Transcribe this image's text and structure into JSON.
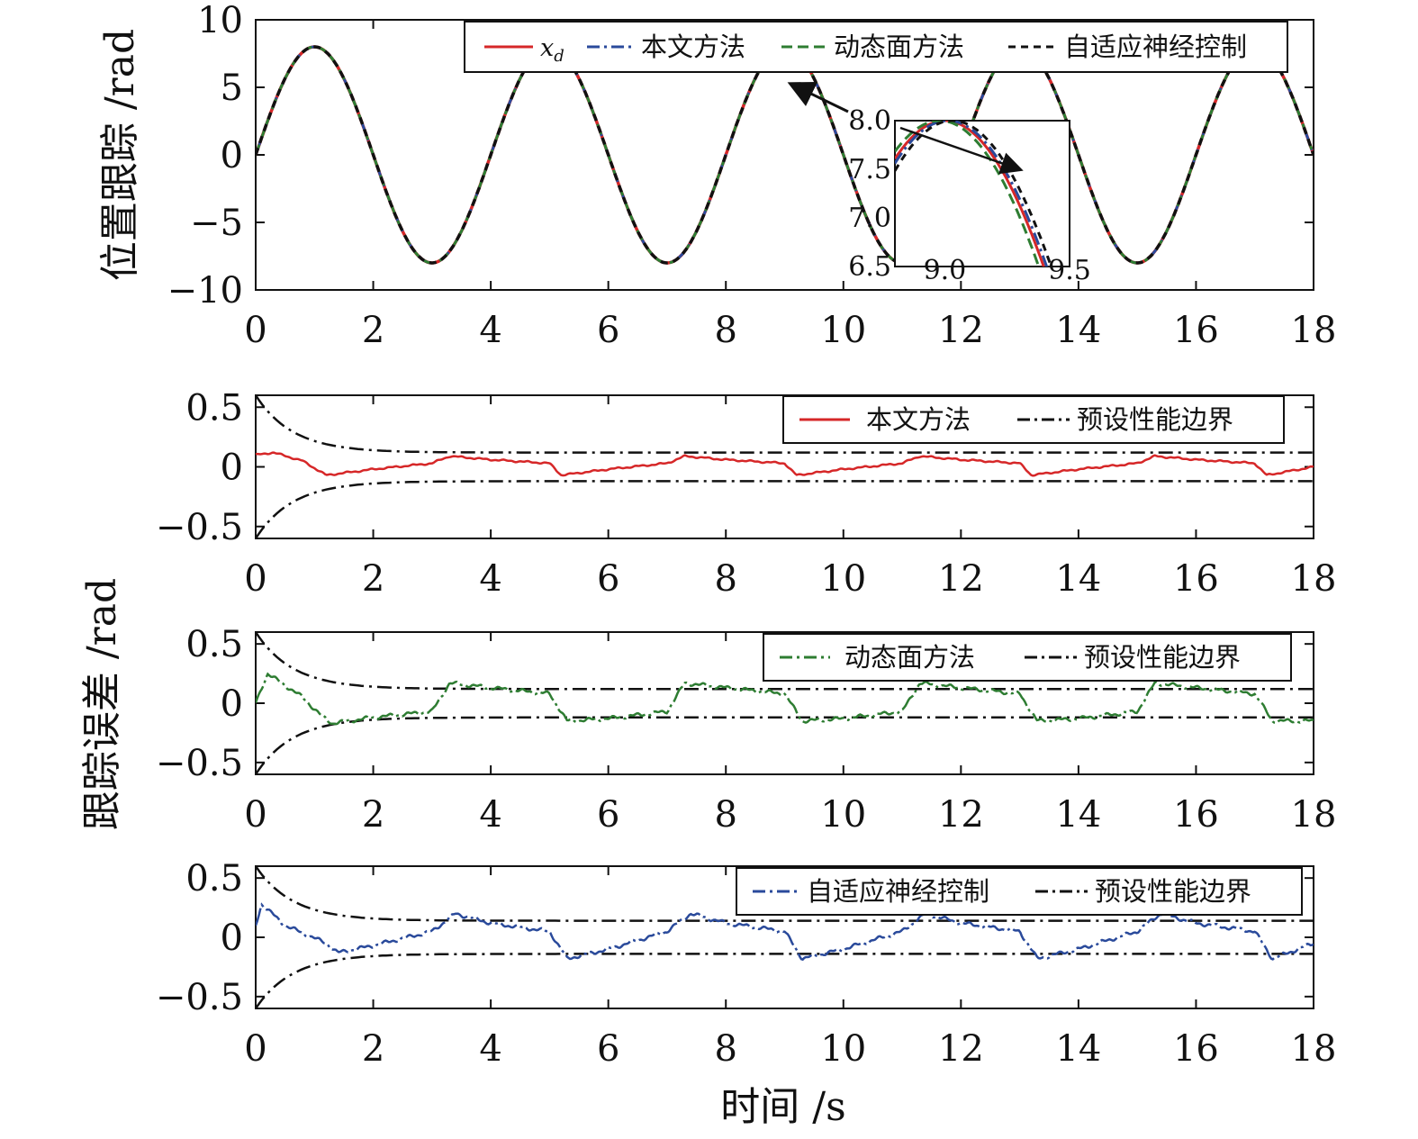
{
  "figure": {
    "xlabel": "时间 /s",
    "ylabel_top": "位置跟踪 /rad",
    "ylabel_error": "跟踪误差 /rad"
  },
  "colors": {
    "xd": "#d62728",
    "proposed": "#2a4a9b",
    "dsc": "#2e7d32",
    "anc": "#111111",
    "bound": "#111111"
  },
  "chart_data": [
    {
      "type": "line",
      "panel": "position",
      "x_range": [
        0,
        18
      ],
      "ylim": [
        -10,
        10
      ],
      "xticks": [
        "0",
        "2",
        "4",
        "6",
        "8",
        "10",
        "12",
        "14",
        "16",
        "18"
      ],
      "yticks": [
        "10",
        "5",
        "0",
        "−5",
        "−10"
      ],
      "series": [
        {
          "name": "x",
          "subscript": "d",
          "amplitude": 8,
          "period": 4,
          "style": "solid",
          "color": "#d62728"
        },
        {
          "name": "本文方法",
          "amplitude": 8,
          "period": 4,
          "style": "dash-dot",
          "color": "#2a4a9b"
        },
        {
          "name": "动态面方法",
          "amplitude": 8,
          "period": 4,
          "style": "dash",
          "color": "#2e7d32"
        },
        {
          "name": "自适应神经控制",
          "amplitude": 8,
          "period": 4,
          "style": "dash",
          "color": "#111111"
        }
      ],
      "inset": {
        "x_range": [
          8.8,
          9.5
        ],
        "ylim": [
          6.5,
          8.0
        ],
        "xticks": [
          "9.0",
          "9.5"
        ],
        "yticks": [
          "8.0",
          "7.5",
          "7.0",
          "6.5"
        ]
      }
    },
    {
      "type": "line",
      "panel": "error-proposed",
      "x_range": [
        0,
        18
      ],
      "ylim": [
        -0.6,
        0.6
      ],
      "xticks": [
        "0",
        "2",
        "4",
        "6",
        "8",
        "10",
        "12",
        "14",
        "16",
        "18"
      ],
      "yticks": [
        "0.5",
        "0",
        "−0.5"
      ],
      "bound": {
        "initial": 0.6,
        "final": 0.12,
        "decay_rate": 1.6,
        "name": "预设性能边界"
      },
      "series": [
        {
          "name": "本文方法",
          "color": "#d62728",
          "x": [
            0,
            0.3,
            0.8,
            1.2,
            2,
            3,
            3.3,
            4,
            5,
            5.2,
            6,
            7,
            7.3,
            8,
            9,
            9.2,
            10,
            11,
            11.3,
            12,
            13,
            13.2,
            14,
            15,
            15.3,
            16,
            17,
            17.2,
            18
          ],
          "y": [
            0.1,
            0.12,
            0.05,
            -0.07,
            -0.02,
            0.03,
            0.09,
            0.06,
            0.03,
            -0.07,
            -0.02,
            0.03,
            0.09,
            0.06,
            0.03,
            -0.07,
            -0.02,
            0.03,
            0.09,
            0.06,
            0.03,
            -0.07,
            -0.02,
            0.03,
            0.09,
            0.06,
            0.03,
            -0.07,
            0.0
          ]
        }
      ]
    },
    {
      "type": "line",
      "panel": "error-dsc",
      "x_range": [
        0,
        18
      ],
      "ylim": [
        -0.6,
        0.6
      ],
      "xticks": [
        "0",
        "2",
        "4",
        "6",
        "8",
        "10",
        "12",
        "14",
        "16",
        "18"
      ],
      "yticks": [
        "0.5",
        "0",
        "−0.5"
      ],
      "bound": {
        "initial": 0.6,
        "final": 0.12,
        "decay_rate": 1.6,
        "name": "预设性能边界"
      },
      "series": [
        {
          "name": "动态面方法",
          "color": "#2e7d32",
          "x": [
            0,
            0.2,
            0.8,
            1.1,
            1.3,
            2,
            3,
            3.3,
            4,
            5,
            5.3,
            6,
            7,
            7.3,
            8,
            9,
            9.3,
            10,
            11,
            11.3,
            12,
            13,
            13.3,
            14,
            15,
            15.3,
            16,
            17,
            17.3,
            18
          ],
          "y": [
            0.0,
            0.25,
            0.05,
            -0.1,
            -0.17,
            -0.12,
            -0.07,
            0.17,
            0.13,
            0.08,
            -0.15,
            -0.13,
            -0.07,
            0.17,
            0.13,
            0.08,
            -0.15,
            -0.13,
            -0.07,
            0.17,
            0.13,
            0.08,
            -0.15,
            -0.13,
            -0.07,
            0.17,
            0.13,
            0.08,
            -0.15,
            -0.15
          ]
        }
      ]
    },
    {
      "type": "line",
      "panel": "error-anc",
      "x_range": [
        0,
        18
      ],
      "ylim": [
        -0.6,
        0.6
      ],
      "xticks": [
        "0",
        "2",
        "4",
        "6",
        "8",
        "10",
        "12",
        "14",
        "16",
        "18"
      ],
      "yticks": [
        "0.5",
        "0",
        "−0.5"
      ],
      "bound": {
        "initial": 0.6,
        "final": 0.14,
        "decay_rate": 1.6,
        "name": "预设性能边界"
      },
      "series": [
        {
          "name": "自适应神经控制",
          "color": "#2a4a9b",
          "x": [
            0,
            0.1,
            0.5,
            1.2,
            1.4,
            2,
            3,
            3.4,
            4,
            5,
            5.3,
            6,
            7,
            7.4,
            8,
            9,
            9.3,
            10,
            11,
            11.4,
            12,
            13,
            13.3,
            14,
            15,
            15.4,
            16,
            17,
            17.3,
            18
          ],
          "y": [
            0.1,
            0.28,
            0.1,
            -0.05,
            -0.13,
            -0.07,
            0.05,
            0.2,
            0.12,
            0.05,
            -0.18,
            -0.1,
            0.05,
            0.2,
            0.12,
            0.05,
            -0.18,
            -0.1,
            0.05,
            0.2,
            0.12,
            0.05,
            -0.18,
            -0.1,
            0.05,
            0.2,
            0.12,
            0.05,
            -0.18,
            -0.05
          ]
        }
      ]
    }
  ]
}
